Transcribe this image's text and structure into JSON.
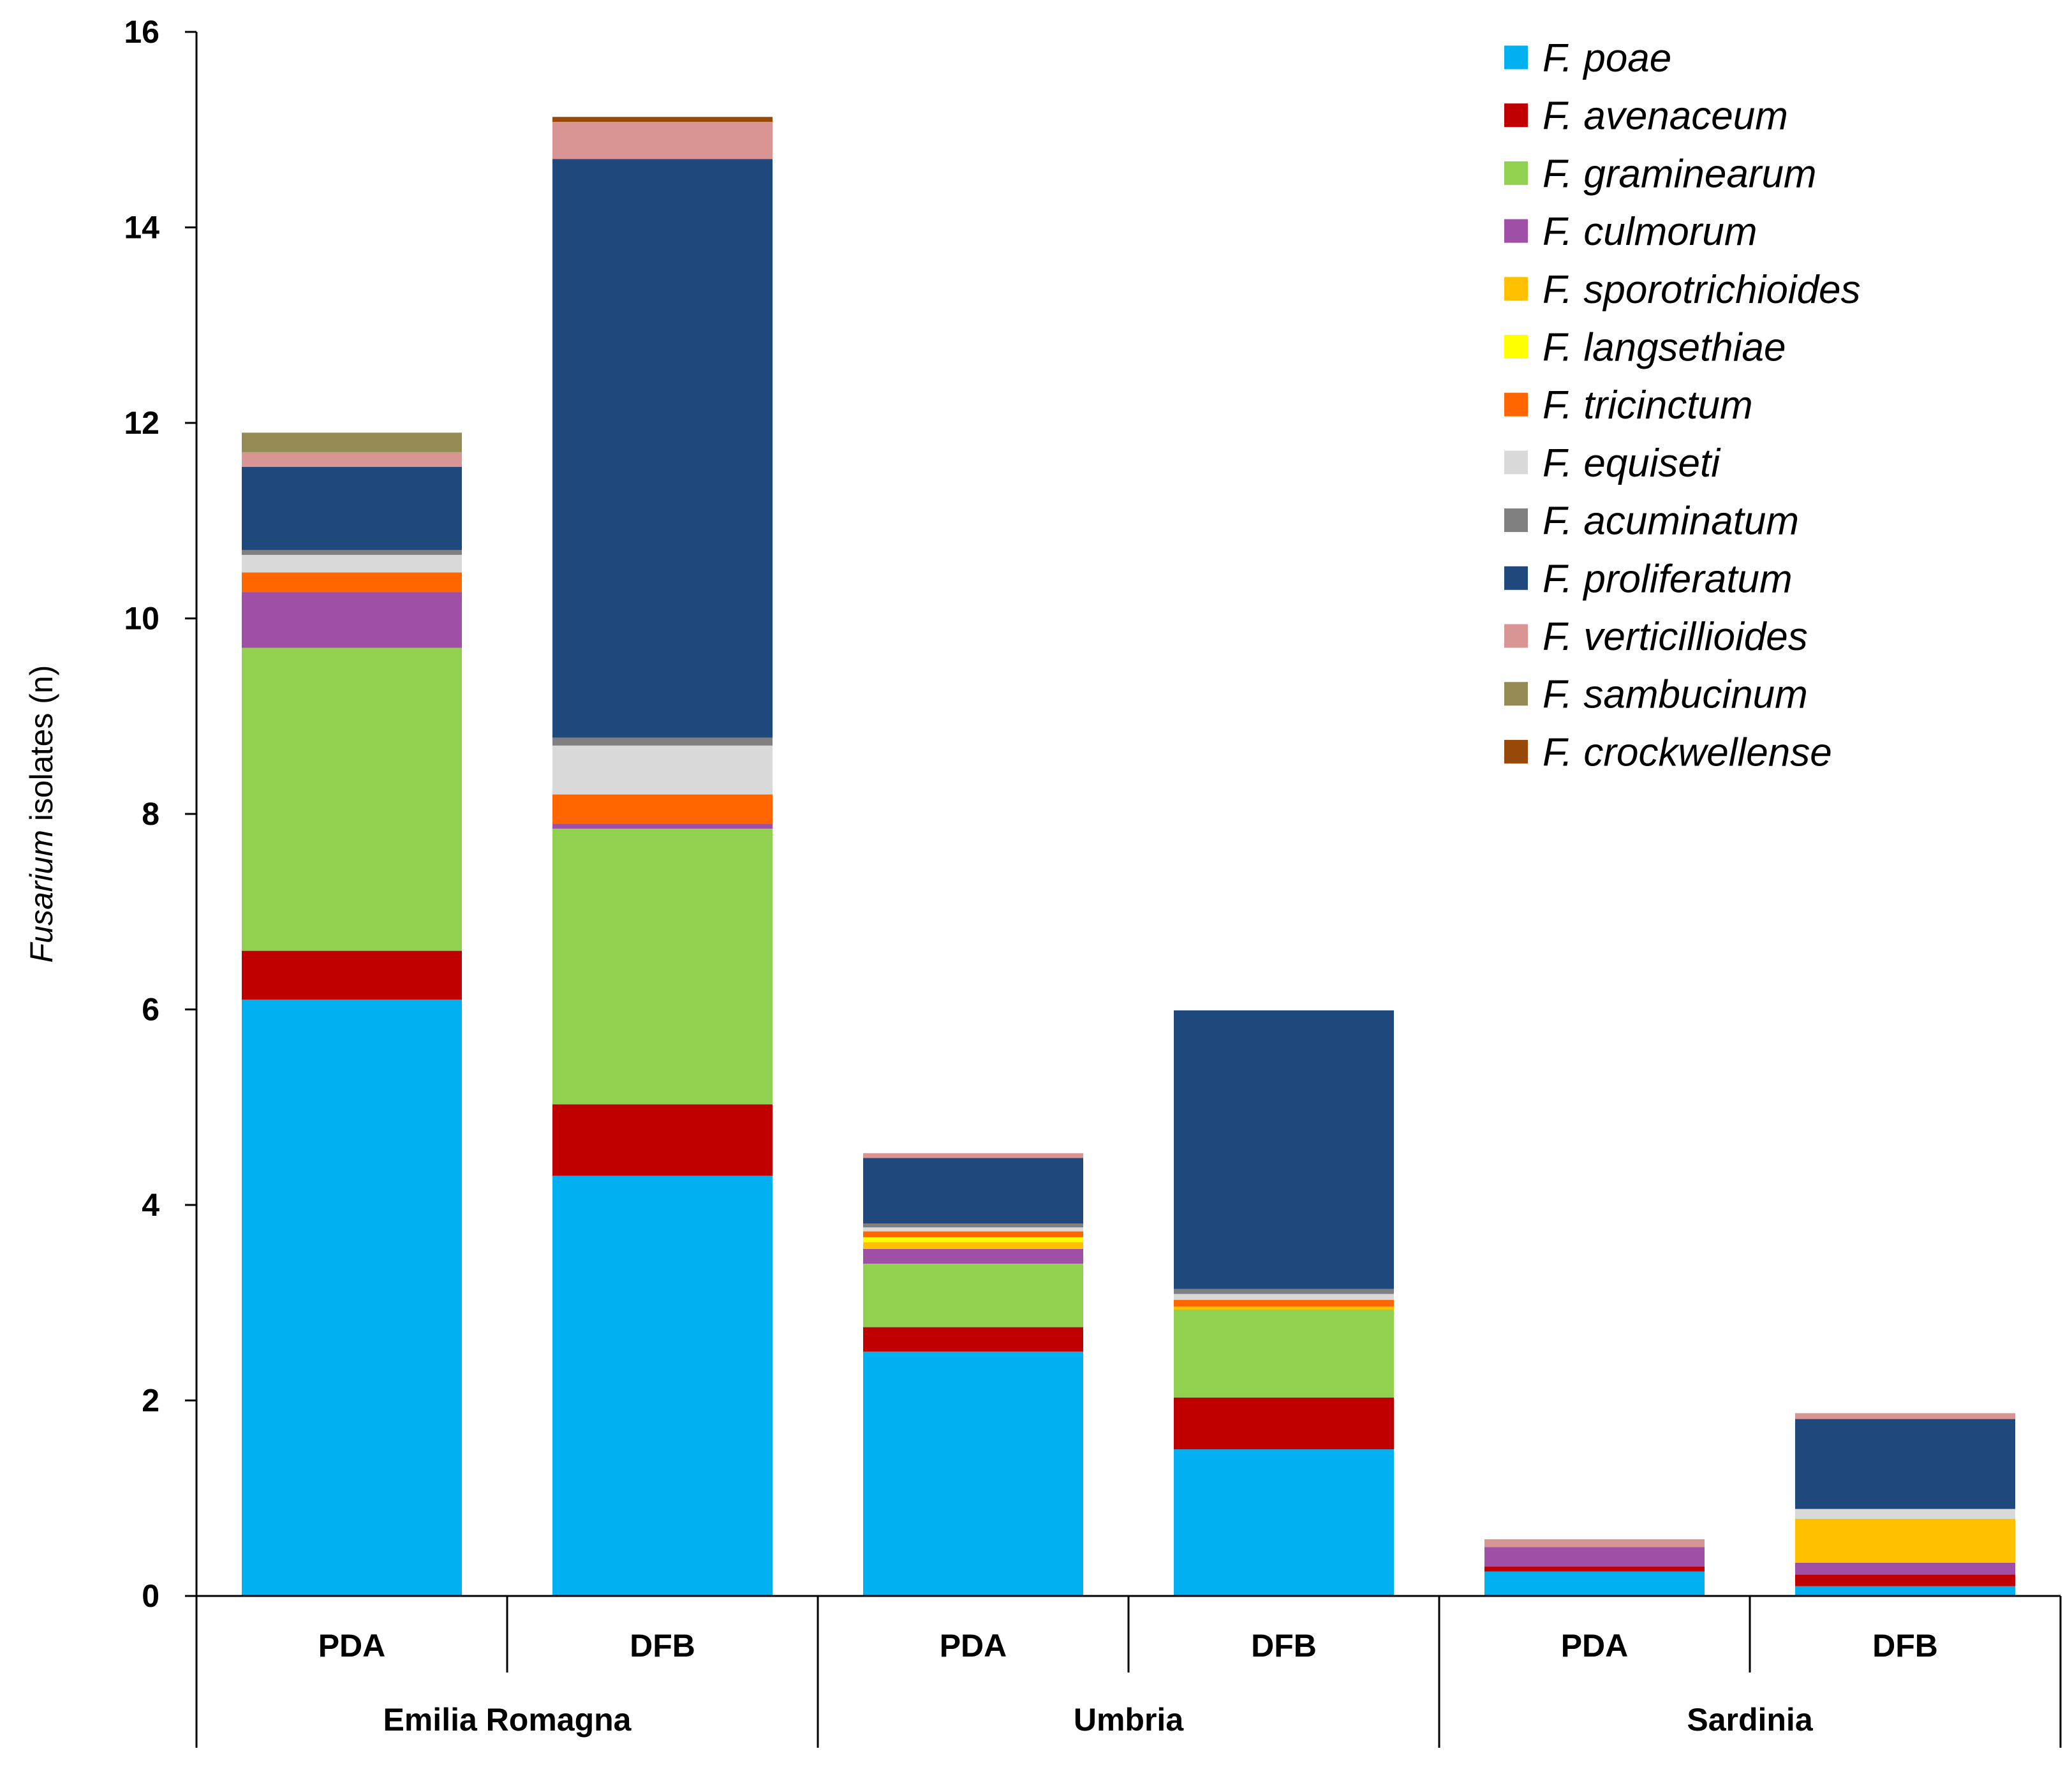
{
  "chart_data": {
    "type": "bar",
    "stacked": true,
    "title": "",
    "xlabel": "",
    "ylabel": {
      "italic": "Fusarium",
      "rest": " isolates (n)"
    },
    "ylim": [
      0,
      16
    ],
    "yticks": [
      0,
      2,
      4,
      6,
      8,
      10,
      12,
      14,
      16
    ],
    "categories": [
      "PDA",
      "DFB",
      "PDA",
      "DFB",
      "PDA",
      "DFB"
    ],
    "groups": [
      {
        "name": "Emilia Romagna",
        "span": [
          0,
          1
        ]
      },
      {
        "name": "Umbria",
        "span": [
          2,
          3
        ]
      },
      {
        "name": "Sardinia",
        "span": [
          4,
          5
        ]
      }
    ],
    "legend_position": "top-right",
    "series": [
      {
        "name": "F. poae",
        "color": "#00B0F0",
        "values": [
          6.1,
          4.3,
          2.5,
          1.5,
          0.25,
          0.1
        ]
      },
      {
        "name": "F. avenaceum",
        "color": "#C00000",
        "values": [
          0.5,
          0.73,
          0.25,
          0.53,
          0.05,
          0.12
        ]
      },
      {
        "name": "F. graminearum",
        "color": "#92D050",
        "values": [
          3.1,
          2.82,
          0.65,
          0.9,
          0.0,
          0.0
        ]
      },
      {
        "name": "F. culmorum",
        "color": "#9F4FA5",
        "values": [
          0.57,
          0.05,
          0.15,
          0.0,
          0.2,
          0.12
        ]
      },
      {
        "name": "F. sporotrichioides",
        "color": "#FFC000",
        "values": [
          0.0,
          0.0,
          0.07,
          0.03,
          0.0,
          0.45
        ]
      },
      {
        "name": "F. langsethiae",
        "color": "#FFFF00",
        "values": [
          0.0,
          0.0,
          0.05,
          0.0,
          0.0,
          0.0
        ]
      },
      {
        "name": "F. tricinctum",
        "color": "#FF6600",
        "values": [
          0.2,
          0.3,
          0.06,
          0.07,
          0.0,
          0.0
        ]
      },
      {
        "name": "F. equiseti",
        "color": "#D9D9D9",
        "values": [
          0.18,
          0.5,
          0.04,
          0.06,
          0.0,
          0.1
        ]
      },
      {
        "name": "F. acuminatum",
        "color": "#808080",
        "values": [
          0.05,
          0.08,
          0.04,
          0.05,
          0.0,
          0.0
        ]
      },
      {
        "name": "F. proliferatum",
        "color": "#1F497D",
        "values": [
          0.85,
          5.92,
          0.67,
          2.85,
          0.0,
          0.92
        ]
      },
      {
        "name": "F. verticillioides",
        "color": "#D99594",
        "values": [
          0.15,
          0.38,
          0.05,
          0.0,
          0.08,
          0.06
        ]
      },
      {
        "name": "F. sambucinum",
        "color": "#948A54",
        "values": [
          0.2,
          0.0,
          0.0,
          0.0,
          0.0,
          0.0
        ]
      },
      {
        "name": "F. crockwellense",
        "color": "#984807",
        "values": [
          0.0,
          0.05,
          0.0,
          0.0,
          0.0,
          0.0
        ]
      }
    ]
  }
}
